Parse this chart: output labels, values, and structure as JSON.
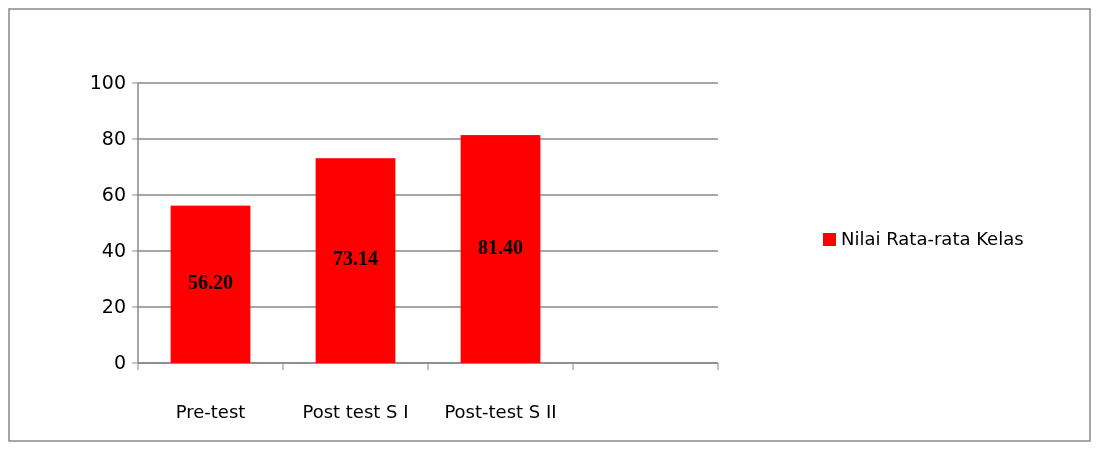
{
  "chart_data": {
    "type": "bar",
    "categories": [
      "Pre-test",
      "Post test S I",
      "Post-test S II",
      null
    ],
    "series": [
      {
        "name": "Nilai Rata-rata Kelas",
        "color": "#ff0000",
        "values": [
          56.2,
          73.14,
          81.4,
          null
        ],
        "value_labels": [
          "56.20",
          "73.14",
          "81.40",
          null
        ]
      }
    ],
    "ylim": [
      0,
      100
    ],
    "yticks": [
      0,
      20,
      40,
      60,
      80,
      100
    ],
    "grid": "y",
    "legend": "right"
  }
}
